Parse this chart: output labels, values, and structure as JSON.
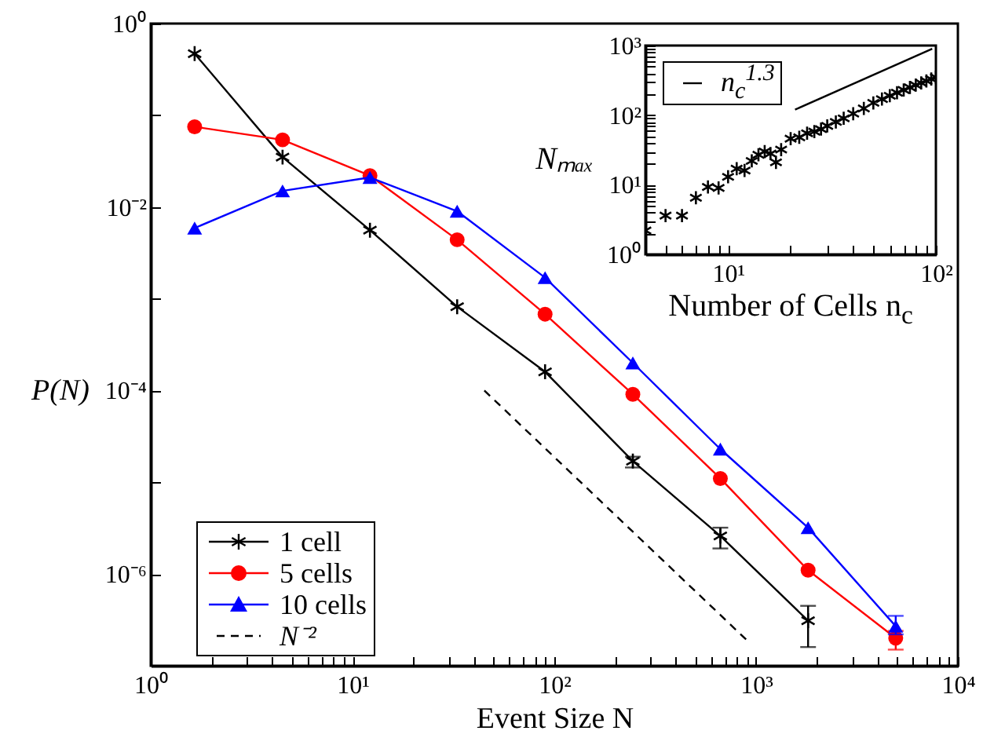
{
  "chart_data": [
    {
      "type": "line",
      "xlabel": "Event Size N",
      "ylabel": "P(N)",
      "log": "xy",
      "legend": "bottom left",
      "xlim": [
        1,
        10000
      ],
      "ylim": [
        1e-07,
        1
      ],
      "xticks": [
        {
          "value": 1,
          "label": "10⁰"
        },
        {
          "value": 2,
          "label": null
        },
        {
          "value": 3,
          "label": null
        },
        {
          "value": 4,
          "label": null
        },
        {
          "value": 5,
          "label": null
        },
        {
          "value": 6,
          "label": null
        },
        {
          "value": 7,
          "label": null
        },
        {
          "value": 8,
          "label": null
        },
        {
          "value": 9,
          "label": null
        },
        {
          "value": 10,
          "label": "10¹"
        },
        {
          "value": 20,
          "label": null
        },
        {
          "value": 30,
          "label": null
        },
        {
          "value": 40,
          "label": null
        },
        {
          "value": 50,
          "label": null
        },
        {
          "value": 60,
          "label": null
        },
        {
          "value": 70,
          "label": null
        },
        {
          "value": 80,
          "label": null
        },
        {
          "value": 90,
          "label": null
        },
        {
          "value": 100,
          "label": "10²"
        },
        {
          "value": 200,
          "label": null
        },
        {
          "value": 300,
          "label": null
        },
        {
          "value": 400,
          "label": null
        },
        {
          "value": 500,
          "label": null
        },
        {
          "value": 600,
          "label": null
        },
        {
          "value": 700,
          "label": null
        },
        {
          "value": 800,
          "label": null
        },
        {
          "value": 900,
          "label": null
        },
        {
          "value": 1000,
          "label": "10³"
        },
        {
          "value": 2000,
          "label": null
        },
        {
          "value": 3000,
          "label": null
        },
        {
          "value": 4000,
          "label": null
        },
        {
          "value": 5000,
          "label": null
        },
        {
          "value": 6000,
          "label": null
        },
        {
          "value": 7000,
          "label": null
        },
        {
          "value": 8000,
          "label": null
        },
        {
          "value": 9000,
          "label": null
        },
        {
          "value": 10000,
          "label": "10⁴"
        }
      ],
      "yticks": [
        {
          "value": 1e-07,
          "label": null
        },
        {
          "value": 1e-06,
          "label": "10⁻⁶"
        },
        {
          "value": 1e-05,
          "label": null
        },
        {
          "value": 0.0001,
          "label": "10⁻⁴"
        },
        {
          "value": 0.001,
          "label": null
        },
        {
          "value": 0.01,
          "label": "10⁻²"
        },
        {
          "value": 0.1,
          "label": null
        },
        {
          "value": 1,
          "label": "10⁰"
        }
      ],
      "x": [
        1.65,
        4.5,
        12.2,
        33,
        90,
        245,
        665,
        1810,
        4920
      ],
      "series": [
        {
          "name": "1 cell",
          "color": "#000000",
          "marker": "cross",
          "values": [
            0.47,
            0.035,
            0.0056,
            0.00082,
            0.00016,
            1.7e-05,
            2.6e-06,
            3.1e-07,
            null
          ],
          "errors": [
            null,
            null,
            null,
            null,
            null,
            [
              1.45e-05,
              1.9e-05
            ],
            [
              1.9e-06,
              3.2e-06
            ],
            [
              1.6e-07,
              4.5e-07
            ],
            null
          ]
        },
        {
          "name": "5 cells",
          "color": "#ff0000",
          "marker": "circle",
          "values": [
            0.075,
            0.054,
            0.022,
            0.0044,
            0.00068,
            9.1e-05,
            1.1e-05,
            1.1e-06,
            2e-07
          ],
          "errors": [
            null,
            null,
            null,
            null,
            null,
            null,
            null,
            null,
            [
              1.5e-07,
              2.4e-07
            ]
          ]
        },
        {
          "name": "10 cells",
          "color": "#0000ff",
          "marker": "triangle",
          "values": [
            0.0059,
            0.015,
            0.021,
            0.009,
            0.0017,
            0.0002,
            2.3e-05,
            3.2e-06,
            2.7e-07
          ],
          "errors": [
            null,
            null,
            null,
            null,
            null,
            null,
            null,
            null,
            [
              2.2e-07,
              3.5e-07
            ]
          ]
        },
        {
          "name": "N⁻²",
          "type": "line",
          "line_style": "dashed",
          "marker": "none",
          "color": "#000000",
          "x": [
            45,
            900
          ],
          "values": [
            0.0001,
            1.9e-07
          ]
        }
      ]
    },
    {
      "type": "scatter",
      "xlabel": "Number of Cells n$_{c}$",
      "ylabel": "Nₘₐₓ",
      "log": "xy",
      "legend": "top left",
      "xlim": [
        4,
        100
      ],
      "ylim": [
        1,
        1000
      ],
      "xticks": [
        {
          "value": 5,
          "label": null
        },
        {
          "value": 6,
          "label": null
        },
        {
          "value": 7,
          "label": null
        },
        {
          "value": 8,
          "label": null
        },
        {
          "value": 9,
          "label": null
        },
        {
          "value": 10,
          "label": "10¹"
        },
        {
          "value": 20,
          "label": null
        },
        {
          "value": 30,
          "label": null
        },
        {
          "value": 40,
          "label": null
        },
        {
          "value": 50,
          "label": null
        },
        {
          "value": 60,
          "label": null
        },
        {
          "value": 70,
          "label": null
        },
        {
          "value": 80,
          "label": null
        },
        {
          "value": 90,
          "label": null
        },
        {
          "value": 100,
          "label": "10²"
        }
      ],
      "yticks": [
        {
          "value": 1,
          "label": "10⁰"
        },
        {
          "value": 2,
          "label": null
        },
        {
          "value": 3,
          "label": null
        },
        {
          "value": 4,
          "label": null
        },
        {
          "value": 5,
          "label": null
        },
        {
          "value": 6,
          "label": null
        },
        {
          "value": 7,
          "label": null
        },
        {
          "value": 8,
          "label": null
        },
        {
          "value": 9,
          "label": null
        },
        {
          "value": 10,
          "label": "10¹"
        },
        {
          "value": 20,
          "label": null
        },
        {
          "value": 30,
          "label": null
        },
        {
          "value": 40,
          "label": null
        },
        {
          "value": 50,
          "label": null
        },
        {
          "value": 60,
          "label": null
        },
        {
          "value": 70,
          "label": null
        },
        {
          "value": 80,
          "label": null
        },
        {
          "value": 90,
          "label": null
        },
        {
          "value": 100,
          "label": "10²"
        },
        {
          "value": 200,
          "label": null
        },
        {
          "value": 300,
          "label": null
        },
        {
          "value": 400,
          "label": null
        },
        {
          "value": 500,
          "label": null
        },
        {
          "value": 600,
          "label": null
        },
        {
          "value": 700,
          "label": null
        },
        {
          "value": 800,
          "label": null
        },
        {
          "value": 900,
          "label": null
        },
        {
          "value": 1000,
          "label": "10³"
        }
      ],
      "series": [
        {
          "color": "#000000",
          "marker": "cross",
          "x": [
            4,
            5,
            6,
            7,
            8,
            9,
            10,
            11,
            12,
            13,
            14,
            15,
            16,
            17,
            18,
            20,
            22,
            24,
            26,
            28,
            30,
            33,
            36,
            40,
            45,
            50,
            55,
            60,
            65,
            70,
            75,
            80,
            85,
            90,
            95,
            100
          ],
          "values": [
            2.2,
            3.6,
            3.6,
            6.5,
            9.3,
            9,
            13,
            17,
            16,
            22,
            27,
            30,
            28,
            21,
            32,
            46,
            48,
            55,
            58,
            63,
            70,
            80,
            90,
            105,
            125,
            150,
            170,
            190,
            210,
            230,
            250,
            270,
            290,
            310,
            330,
            350
          ]
        },
        {
          "name": "n$_{c}$$^{1.3}$",
          "type": "line",
          "line_style": "solid",
          "marker": "none",
          "color": "#000000",
          "x": [
            21,
            96
          ],
          "values": [
            120,
            900
          ]
        }
      ]
    }
  ]
}
